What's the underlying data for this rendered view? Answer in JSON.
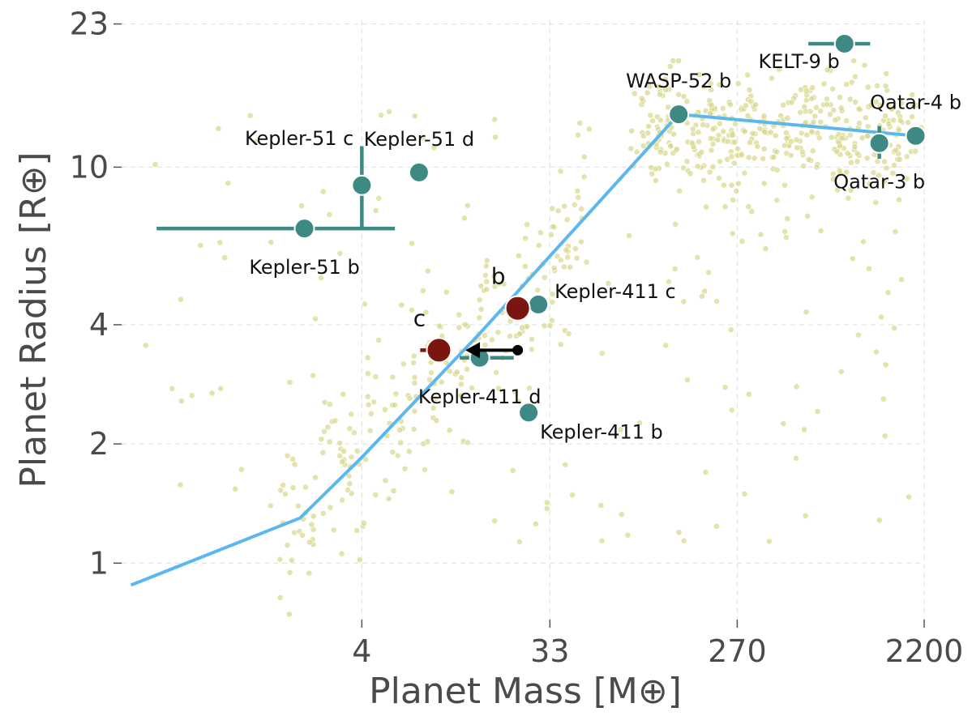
{
  "chart_data": {
    "type": "scatter",
    "title": "",
    "xlabel": "Planet Mass [M⊕]",
    "ylabel": "Planet Radius [R⊕]",
    "xscale": "log",
    "yscale": "log",
    "xlim": [
      0.27,
      2200
    ],
    "ylim": [
      0.72,
      23.5
    ],
    "xticks": [
      4,
      33,
      270,
      2200
    ],
    "xtick_labels": [
      "4",
      "33",
      "270",
      "2200"
    ],
    "yticks": [
      1,
      2,
      4,
      10,
      23
    ],
    "ytick_labels": [
      "1",
      "2",
      "4",
      "10",
      "23"
    ],
    "grid": true,
    "colors": {
      "background_points": "#d9d68a",
      "known_planets": "#3e8983",
      "new_planets": "#7a1510",
      "relation_line": "#5bb8ef",
      "upper_limit": "#000000"
    },
    "mass_radius_relation": {
      "name": "mass-radius relation",
      "x": [
        0.3,
        2.0,
        4.0,
        15.0,
        140.0,
        2000.0
      ],
      "y": [
        0.88,
        1.3,
        1.85,
        3.8,
        13.6,
        12.0
      ]
    },
    "background_population": {
      "name": "known exoplanets",
      "x": [],
      "y": []
    },
    "known_planets": [
      {
        "label": "Kepler-51 b",
        "x": 2.1,
        "y": 7.0,
        "xerr": [
          1.7,
          3.7
        ],
        "yerr": [
          0,
          0
        ],
        "label_pos": "below"
      },
      {
        "label": "Kepler-51 c",
        "x": 4.0,
        "y": 9.0,
        "xerr": [
          0,
          0
        ],
        "yerr": [
          2.0,
          2.3
        ],
        "label_pos": "above-left"
      },
      {
        "label": "Kepler-51 d",
        "x": 7.6,
        "y": 9.7,
        "xerr": [
          0.6,
          0.6
        ],
        "yerr": [
          0,
          0
        ],
        "label_pos": "above"
      },
      {
        "label": "Kepler-411 c",
        "x": 29.0,
        "y": 4.5,
        "xerr": [
          0,
          1.0
        ],
        "yerr": [
          0,
          0
        ],
        "label_pos": "right"
      },
      {
        "label": "Kepler-411 d",
        "x": 15.0,
        "y": 3.3,
        "xerr": [
          3.0,
          7.0
        ],
        "yerr": [
          0,
          0
        ],
        "label_pos": "below"
      },
      {
        "label": "Kepler-411 b",
        "x": 26.0,
        "y": 2.4,
        "xerr": [
          0,
          0
        ],
        "yerr": [
          0,
          0
        ],
        "label_pos": "below-right"
      },
      {
        "label": "WASP-52 b",
        "x": 140.0,
        "y": 13.6,
        "xerr": [
          0,
          0
        ],
        "yerr": [
          0,
          0
        ],
        "label_pos": "above"
      },
      {
        "label": "KELT-9 b",
        "x": 900.0,
        "y": 20.5,
        "xerr": [
          300.0,
          300.0
        ],
        "yerr": [
          0,
          0
        ],
        "label_pos": "below-left"
      },
      {
        "label": "Qatar-4 b",
        "x": 2000.0,
        "y": 12.0,
        "xerr": [
          0,
          0
        ],
        "yerr": [
          0,
          0
        ],
        "label_pos": "above"
      },
      {
        "label": "Qatar-3 b",
        "x": 1330.0,
        "y": 11.5,
        "xerr": [
          0,
          0
        ],
        "yerr": [
          1.0,
          1.2
        ],
        "label_pos": "below"
      }
    ],
    "new_planets": [
      {
        "label": "b",
        "x": 23.0,
        "y": 4.4,
        "label_pos": "above-left"
      },
      {
        "label": "c",
        "x": 9.5,
        "y": 3.45,
        "xerr": [
          1.8,
          0
        ],
        "label_pos": "above-left"
      }
    ],
    "upper_limit_arrow": {
      "from_x": 23.0,
      "to_x": 13.5,
      "y": 3.45
    }
  }
}
